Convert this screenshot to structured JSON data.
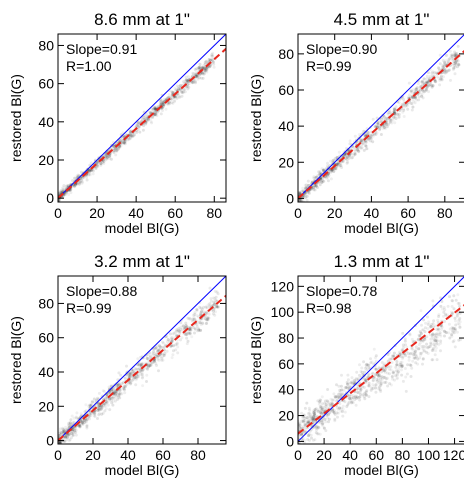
{
  "chart_data": [
    {
      "type": "scatter",
      "title": "8.6 mm at 1\"",
      "xlabel": "model Bl(G)",
      "ylabel": "restored Bl(G)",
      "xlim": [
        0,
        86
      ],
      "ylim": [
        -2,
        86
      ],
      "xticks": [
        0,
        20,
        40,
        60,
        80
      ],
      "yticks": [
        0,
        20,
        40,
        60,
        80
      ],
      "annotations": [
        "Slope=0.91",
        "R=1.00"
      ],
      "fit": {
        "slope": 0.91,
        "intercept": 0
      },
      "identity_line_color": "#0000ff",
      "fit_line_color": "#e8261c",
      "density": {
        "x_range": [
          0,
          80
        ],
        "spread": 1.6
      }
    },
    {
      "type": "scatter",
      "title": "4.5 mm at 1\"",
      "xlabel": "model Bl(G)",
      "ylabel": "restored Bl(G)",
      "xlim": [
        0,
        91
      ],
      "ylim": [
        -2,
        91
      ],
      "xticks": [
        0,
        20,
        40,
        60,
        80
      ],
      "yticks": [
        0,
        20,
        40,
        60,
        80
      ],
      "annotations": [
        "Slope=0.90",
        "R=0.99"
      ],
      "fit": {
        "slope": 0.9,
        "intercept": 0
      },
      "identity_line_color": "#0000ff",
      "fit_line_color": "#e8261c",
      "density": {
        "x_range": [
          0,
          88
        ],
        "spread": 2.6
      }
    },
    {
      "type": "scatter",
      "title": "3.2 mm at 1\"",
      "xlabel": "model Bl(G)",
      "ylabel": "restored Bl(G)",
      "xlim": [
        0,
        96
      ],
      "ylim": [
        -2,
        96
      ],
      "xticks": [
        0,
        20,
        40,
        60,
        80
      ],
      "yticks": [
        0,
        20,
        40,
        60,
        80
      ],
      "annotations": [
        "Slope=0.88",
        "R=0.99"
      ],
      "fit": {
        "slope": 0.88,
        "intercept": 0
      },
      "identity_line_color": "#0000ff",
      "fit_line_color": "#e8261c",
      "density": {
        "x_range": [
          0,
          92
        ],
        "spread": 3.4
      }
    },
    {
      "type": "scatter",
      "title": "1.3 mm at 1\"",
      "xlabel": "model Bl(G)",
      "ylabel": "restored Bl(G)",
      "xlim": [
        0,
        128
      ],
      "ylim": [
        -2,
        128
      ],
      "xticks": [
        0,
        20,
        40,
        60,
        80,
        100,
        120
      ],
      "yticks": [
        0,
        20,
        40,
        60,
        80,
        100,
        120
      ],
      "annotations": [
        "Slope=0.78",
        "R=0.98"
      ],
      "fit": {
        "slope": 0.78,
        "intercept": 6
      },
      "identity_line_color": "#0000ff",
      "fit_line_color": "#e8261c",
      "density": {
        "x_range": [
          0,
          125
        ],
        "spread": 8
      }
    }
  ]
}
